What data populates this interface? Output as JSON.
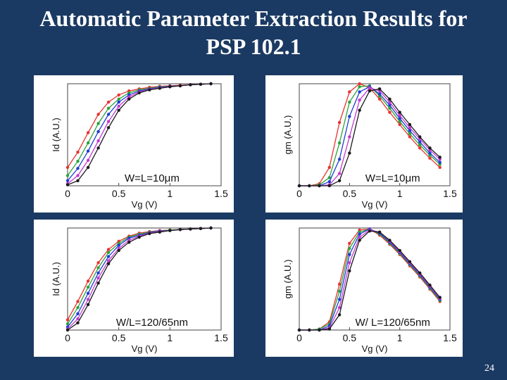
{
  "slide": {
    "title_line1": "Automatic Parameter Extraction Results for",
    "title_line2": "PSP 102.1",
    "number": "24"
  },
  "colors": {
    "background": "#1b3a63",
    "series": [
      "#e8322e",
      "#2aa33a",
      "#1f3bd6",
      "#c23ad0",
      "#1a1a1a"
    ]
  },
  "chart_data": [
    {
      "type": "line",
      "panel": "top-left",
      "xlabel": "Vg (V)",
      "ylabel": "Id (A.U.)",
      "annotation": "W=L=10μm",
      "xticks": [
        "0",
        "0.5",
        "1",
        "1.5"
      ],
      "xlim": [
        0,
        1.5
      ],
      "ylim": [
        0,
        1
      ],
      "x": [
        0,
        0.1,
        0.2,
        0.3,
        0.4,
        0.5,
        0.6,
        0.7,
        0.8,
        0.9,
        1.0,
        1.1,
        1.2,
        1.3,
        1.4
      ],
      "series": [
        {
          "values": [
            0.18,
            0.33,
            0.52,
            0.7,
            0.82,
            0.89,
            0.93,
            0.95,
            0.965,
            0.975,
            0.98,
            0.985,
            0.99,
            0.995,
            1.0
          ]
        },
        {
          "values": [
            0.1,
            0.24,
            0.42,
            0.61,
            0.76,
            0.85,
            0.91,
            0.94,
            0.955,
            0.97,
            0.975,
            0.98,
            0.99,
            0.995,
            1.0
          ]
        },
        {
          "values": [
            0.05,
            0.17,
            0.34,
            0.53,
            0.7,
            0.82,
            0.89,
            0.93,
            0.95,
            0.965,
            0.975,
            0.98,
            0.99,
            0.995,
            1.0
          ]
        },
        {
          "values": [
            0.02,
            0.1,
            0.25,
            0.44,
            0.63,
            0.78,
            0.87,
            0.92,
            0.945,
            0.96,
            0.97,
            0.98,
            0.99,
            0.995,
            1.0
          ]
        },
        {
          "values": [
            0.01,
            0.05,
            0.18,
            0.37,
            0.57,
            0.74,
            0.85,
            0.91,
            0.94,
            0.955,
            0.97,
            0.98,
            0.99,
            0.995,
            1.0
          ]
        }
      ]
    },
    {
      "type": "line",
      "panel": "top-right",
      "xlabel": "Vg (V)",
      "ylabel": "gm (A.U.)",
      "annotation": "W=L=10μm",
      "xticks": [
        "0",
        "0.5",
        "1",
        "1.5"
      ],
      "xlim": [
        0,
        1.5
      ],
      "ylim": [
        0,
        1
      ],
      "x": [
        0,
        0.1,
        0.2,
        0.3,
        0.4,
        0.5,
        0.6,
        0.7,
        0.8,
        0.9,
        1.0,
        1.1,
        1.2,
        1.3,
        1.4
      ],
      "series": [
        {
          "values": [
            0,
            0,
            0.02,
            0.18,
            0.62,
            0.92,
            1.0,
            0.96,
            0.85,
            0.72,
            0.6,
            0.48,
            0.37,
            0.27,
            0.18
          ]
        },
        {
          "values": [
            0,
            0,
            0.01,
            0.08,
            0.42,
            0.82,
            0.97,
            0.98,
            0.88,
            0.76,
            0.63,
            0.51,
            0.4,
            0.3,
            0.21
          ]
        },
        {
          "values": [
            0,
            0,
            0,
            0.04,
            0.26,
            0.68,
            0.92,
            0.97,
            0.9,
            0.79,
            0.66,
            0.54,
            0.43,
            0.32,
            0.23
          ]
        },
        {
          "values": [
            0,
            0,
            0,
            0.01,
            0.12,
            0.48,
            0.84,
            0.96,
            0.93,
            0.82,
            0.69,
            0.57,
            0.46,
            0.35,
            0.26
          ]
        },
        {
          "values": [
            0,
            0,
            0,
            0,
            0.05,
            0.32,
            0.74,
            0.93,
            0.95,
            0.85,
            0.72,
            0.6,
            0.48,
            0.37,
            0.28
          ]
        }
      ]
    },
    {
      "type": "line",
      "panel": "bottom-left",
      "xlabel": "Vg (V)",
      "ylabel": "Id (A.U.)",
      "annotation": "W/L=120/65nm",
      "xticks": [
        "0",
        "0.5",
        "1",
        "1.5"
      ],
      "xlim": [
        0,
        1.5
      ],
      "ylim": [
        0,
        1
      ],
      "x": [
        0,
        0.1,
        0.2,
        0.3,
        0.4,
        0.5,
        0.6,
        0.7,
        0.8,
        0.9,
        1.0,
        1.1,
        1.2,
        1.3,
        1.4
      ],
      "series": [
        {
          "values": [
            0.1,
            0.28,
            0.48,
            0.66,
            0.79,
            0.87,
            0.92,
            0.95,
            0.965,
            0.975,
            0.98,
            0.985,
            0.99,
            0.995,
            1.0
          ]
        },
        {
          "values": [
            0.06,
            0.22,
            0.42,
            0.61,
            0.76,
            0.85,
            0.91,
            0.94,
            0.96,
            0.97,
            0.98,
            0.985,
            0.99,
            0.995,
            1.0
          ]
        },
        {
          "values": [
            0.03,
            0.16,
            0.36,
            0.56,
            0.72,
            0.83,
            0.9,
            0.93,
            0.955,
            0.97,
            0.975,
            0.985,
            0.99,
            0.995,
            1.0
          ]
        },
        {
          "values": [
            0.01,
            0.11,
            0.3,
            0.51,
            0.68,
            0.8,
            0.88,
            0.92,
            0.95,
            0.965,
            0.975,
            0.985,
            0.99,
            0.995,
            1.0
          ]
        },
        {
          "values": [
            0.0,
            0.07,
            0.25,
            0.46,
            0.65,
            0.78,
            0.86,
            0.91,
            0.945,
            0.96,
            0.975,
            0.985,
            0.99,
            0.995,
            1.0
          ]
        }
      ]
    },
    {
      "type": "line",
      "panel": "bottom-right",
      "xlabel": "Vg (V)",
      "ylabel": "gm (A.U.)",
      "annotation": "W/ L=120/65nm",
      "xticks": [
        "0",
        "0.5",
        "1",
        "1.5"
      ],
      "xlim": [
        0,
        1.5
      ],
      "ylim": [
        0,
        1
      ],
      "x": [
        0,
        0.1,
        0.2,
        0.3,
        0.4,
        0.5,
        0.6,
        0.7,
        0.8,
        0.9,
        1.0,
        1.1,
        1.2,
        1.3,
        1.4
      ],
      "series": [
        {
          "values": [
            0,
            0,
            0.01,
            0.08,
            0.45,
            0.85,
            0.98,
            0.99,
            0.93,
            0.84,
            0.74,
            0.63,
            0.52,
            0.4,
            0.28
          ]
        },
        {
          "values": [
            0,
            0,
            0.01,
            0.06,
            0.38,
            0.8,
            0.96,
            0.99,
            0.94,
            0.85,
            0.75,
            0.64,
            0.53,
            0.41,
            0.29
          ]
        },
        {
          "values": [
            0,
            0,
            0,
            0.04,
            0.3,
            0.74,
            0.94,
            0.99,
            0.95,
            0.86,
            0.76,
            0.65,
            0.54,
            0.42,
            0.3
          ]
        },
        {
          "values": [
            0,
            0,
            0,
            0.02,
            0.22,
            0.66,
            0.91,
            0.98,
            0.96,
            0.87,
            0.77,
            0.66,
            0.55,
            0.43,
            0.31
          ]
        },
        {
          "values": [
            0,
            0,
            0,
            0.01,
            0.15,
            0.58,
            0.88,
            0.97,
            0.96,
            0.88,
            0.78,
            0.67,
            0.56,
            0.44,
            0.32
          ]
        }
      ]
    }
  ]
}
